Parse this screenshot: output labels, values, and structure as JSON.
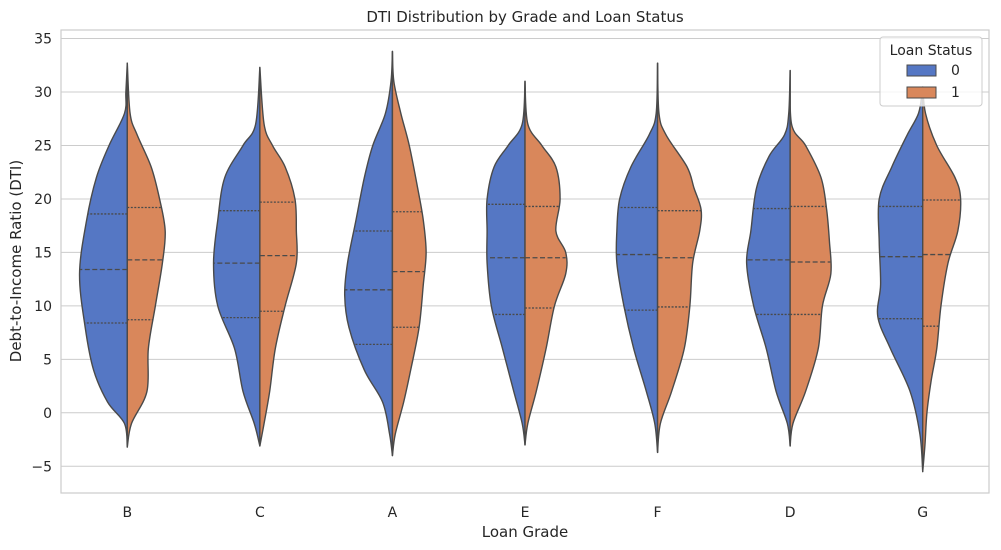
{
  "chart_data": {
    "type": "violin",
    "title": "DTI Distribution by Grade and Loan Status",
    "xlabel": "Loan Grade",
    "ylabel": "Debt-to-Income Ratio (DTI)",
    "ylim": [
      -7.5,
      35.8
    ],
    "yticks": [
      -5,
      0,
      5,
      10,
      15,
      20,
      25,
      30,
      35
    ],
    "ytick_labels": [
      "−5",
      "0",
      "5",
      "10",
      "15",
      "20",
      "25",
      "30",
      "35"
    ],
    "grid": true,
    "split": true,
    "inner": "quartile",
    "categories": [
      "B",
      "C",
      "A",
      "E",
      "F",
      "D",
      "G"
    ],
    "legend": {
      "title": "Loan Status",
      "placement": "top-right",
      "entries": [
        {
          "label": "0",
          "color": "#5577c4"
        },
        {
          "label": "1",
          "color": "#d9875b"
        }
      ]
    },
    "colors": {
      "status_0": "#5577c4",
      "status_1": "#d9875b",
      "outline": "#4a4a4a",
      "grid": "#cccccc"
    },
    "violins": [
      {
        "category": "B",
        "status_0": {
          "profile": [
            [
              -3.2,
              0
            ],
            [
              -1,
              0.1
            ],
            [
              1,
              0.7
            ],
            [
              4,
              1.2
            ],
            [
              8,
              1.5
            ],
            [
              13,
              1.7
            ],
            [
              18,
              1.45
            ],
            [
              22,
              1.1
            ],
            [
              25,
              0.65
            ],
            [
              28,
              0.1
            ],
            [
              30,
              0.05
            ],
            [
              32.7,
              0
            ]
          ],
          "quartiles": [
            8.4,
            13.4,
            18.6
          ]
        },
        "status_1": {
          "profile": [
            [
              -3.2,
              0
            ],
            [
              -1,
              0.15
            ],
            [
              2,
              0.7
            ],
            [
              6,
              0.75
            ],
            [
              10,
              1.0
            ],
            [
              14,
              1.25
            ],
            [
              17,
              1.35
            ],
            [
              20,
              1.15
            ],
            [
              23,
              0.85
            ],
            [
              26,
              0.35
            ],
            [
              28,
              0.1
            ],
            [
              32.7,
              0
            ]
          ],
          "quartiles": [
            8.7,
            14.3,
            19.2
          ]
        }
      },
      {
        "category": "C",
        "status_0": {
          "profile": [
            [
              -3.1,
              0
            ],
            [
              -1,
              0.2
            ],
            [
              2,
              0.6
            ],
            [
              6,
              0.9
            ],
            [
              10,
              1.5
            ],
            [
              14,
              1.65
            ],
            [
              18,
              1.5
            ],
            [
              22,
              1.25
            ],
            [
              25,
              0.6
            ],
            [
              27,
              0.15
            ],
            [
              32.3,
              0
            ]
          ],
          "quartiles": [
            8.9,
            14.0,
            18.9
          ]
        },
        "status_1": {
          "profile": [
            [
              -3.1,
              0
            ],
            [
              -1,
              0.15
            ],
            [
              2,
              0.35
            ],
            [
              6,
              0.55
            ],
            [
              10,
              0.9
            ],
            [
              14,
              1.3
            ],
            [
              17,
              1.3
            ],
            [
              20,
              1.25
            ],
            [
              23,
              0.9
            ],
            [
              25,
              0.45
            ],
            [
              27,
              0.15
            ],
            [
              32.3,
              0
            ]
          ],
          "quartiles": [
            9.5,
            14.7,
            19.7
          ]
        }
      },
      {
        "category": "A",
        "status_0": {
          "profile": [
            [
              -4,
              0
            ],
            [
              -2,
              0.1
            ],
            [
              1,
              0.35
            ],
            [
              4,
              1.0
            ],
            [
              8,
              1.55
            ],
            [
              11,
              1.7
            ],
            [
              14,
              1.6
            ],
            [
              18,
              1.3
            ],
            [
              22,
              1.0
            ],
            [
              25,
              0.7
            ],
            [
              28,
              0.25
            ],
            [
              31,
              0.05
            ],
            [
              33.8,
              0
            ]
          ],
          "quartiles": [
            6.4,
            11.5,
            17.0
          ]
        },
        "status_1": {
          "profile": [
            [
              -4,
              0
            ],
            [
              -2,
              0.1
            ],
            [
              1,
              0.4
            ],
            [
              4,
              0.65
            ],
            [
              8,
              0.95
            ],
            [
              12,
              1.1
            ],
            [
              15,
              1.2
            ],
            [
              18,
              1.1
            ],
            [
              21,
              0.9
            ],
            [
              25,
              0.6
            ],
            [
              28,
              0.3
            ],
            [
              31,
              0.05
            ],
            [
              33.8,
              0
            ]
          ],
          "quartiles": [
            8.0,
            13.2,
            18.8
          ]
        }
      },
      {
        "category": "E",
        "status_0": {
          "profile": [
            [
              -3,
              0
            ],
            [
              -1,
              0.1
            ],
            [
              2,
              0.4
            ],
            [
              6,
              0.8
            ],
            [
              10,
              1.2
            ],
            [
              14,
              1.35
            ],
            [
              17,
              1.35
            ],
            [
              20,
              1.35
            ],
            [
              23,
              1.1
            ],
            [
              25,
              0.6
            ],
            [
              27,
              0.1
            ],
            [
              31,
              0
            ]
          ],
          "quartiles": [
            9.2,
            14.5,
            19.5
          ]
        },
        "status_1": {
          "profile": [
            [
              -3,
              0
            ],
            [
              -1,
              0.1
            ],
            [
              2,
              0.4
            ],
            [
              6,
              0.75
            ],
            [
              10,
              1.05
            ],
            [
              13,
              1.45
            ],
            [
              15,
              1.45
            ],
            [
              17,
              1.1
            ],
            [
              20,
              1.25
            ],
            [
              23,
              1.1
            ],
            [
              25,
              0.6
            ],
            [
              27,
              0.1
            ],
            [
              31,
              0
            ]
          ],
          "quartiles": [
            9.8,
            14.5,
            19.3
          ]
        }
      },
      {
        "category": "F",
        "status_0": {
          "profile": [
            [
              -3.7,
              0
            ],
            [
              -1,
              0.1
            ],
            [
              2,
              0.4
            ],
            [
              6,
              0.85
            ],
            [
              10,
              1.2
            ],
            [
              14,
              1.45
            ],
            [
              17,
              1.45
            ],
            [
              20,
              1.35
            ],
            [
              23,
              0.95
            ],
            [
              26,
              0.3
            ],
            [
              28,
              0.05
            ],
            [
              32.7,
              0
            ]
          ],
          "quartiles": [
            9.6,
            14.8,
            19.2
          ]
        },
        "status_1": {
          "profile": [
            [
              -3.7,
              0
            ],
            [
              -1,
              0.1
            ],
            [
              2,
              0.5
            ],
            [
              6,
              0.95
            ],
            [
              10,
              1.15
            ],
            [
              14,
              1.25
            ],
            [
              17,
              1.5
            ],
            [
              19,
              1.55
            ],
            [
              21,
              1.3
            ],
            [
              23,
              1.05
            ],
            [
              26,
              0.3
            ],
            [
              28,
              0.05
            ],
            [
              32.7,
              0
            ]
          ],
          "quartiles": [
            9.9,
            14.5,
            18.9
          ]
        }
      },
      {
        "category": "D",
        "status_0": {
          "profile": [
            [
              -3.1,
              0
            ],
            [
              -1,
              0.1
            ],
            [
              2,
              0.5
            ],
            [
              6,
              0.85
            ],
            [
              10,
              1.3
            ],
            [
              14,
              1.55
            ],
            [
              17,
              1.4
            ],
            [
              21,
              1.2
            ],
            [
              24,
              0.75
            ],
            [
              26,
              0.2
            ],
            [
              28,
              0.05
            ],
            [
              32,
              0
            ]
          ],
          "quartiles": [
            9.2,
            14.3,
            19.1
          ]
        },
        "status_1": {
          "profile": [
            [
              -3.1,
              0
            ],
            [
              -1,
              0.1
            ],
            [
              2,
              0.55
            ],
            [
              6,
              1.0
            ],
            [
              10,
              1.15
            ],
            [
              13,
              1.45
            ],
            [
              16,
              1.4
            ],
            [
              19,
              1.3
            ],
            [
              22,
              1.1
            ],
            [
              25,
              0.55
            ],
            [
              27,
              0.05
            ],
            [
              32,
              0
            ]
          ],
          "quartiles": [
            9.2,
            14.1,
            19.3
          ]
        }
      },
      {
        "category": "G",
        "status_0": {
          "profile": [
            [
              -5.5,
              0
            ],
            [
              -2,
              0.1
            ],
            [
              2,
              0.45
            ],
            [
              6,
              1.15
            ],
            [
              9,
              1.6
            ],
            [
              12,
              1.5
            ],
            [
              16,
              1.55
            ],
            [
              20,
              1.55
            ],
            [
              23,
              1.1
            ],
            [
              26,
              0.55
            ],
            [
              28,
              0.15
            ],
            [
              30,
              0.02
            ],
            [
              30.5,
              0
            ]
          ],
          "quartiles": [
            8.8,
            14.6,
            19.3
          ]
        },
        "status_1": {
          "profile": [
            [
              -5.5,
              0
            ],
            [
              -3,
              0.08
            ],
            [
              0,
              0.15
            ],
            [
              3,
              0.3
            ],
            [
              6,
              0.5
            ],
            [
              10,
              0.65
            ],
            [
              14,
              0.9
            ],
            [
              17,
              1.25
            ],
            [
              20,
              1.35
            ],
            [
              22,
              1.15
            ],
            [
              25,
              0.5
            ],
            [
              28,
              0.1
            ],
            [
              30.5,
              0
            ]
          ],
          "quartiles": [
            8.1,
            14.8,
            19.9
          ]
        }
      }
    ]
  }
}
